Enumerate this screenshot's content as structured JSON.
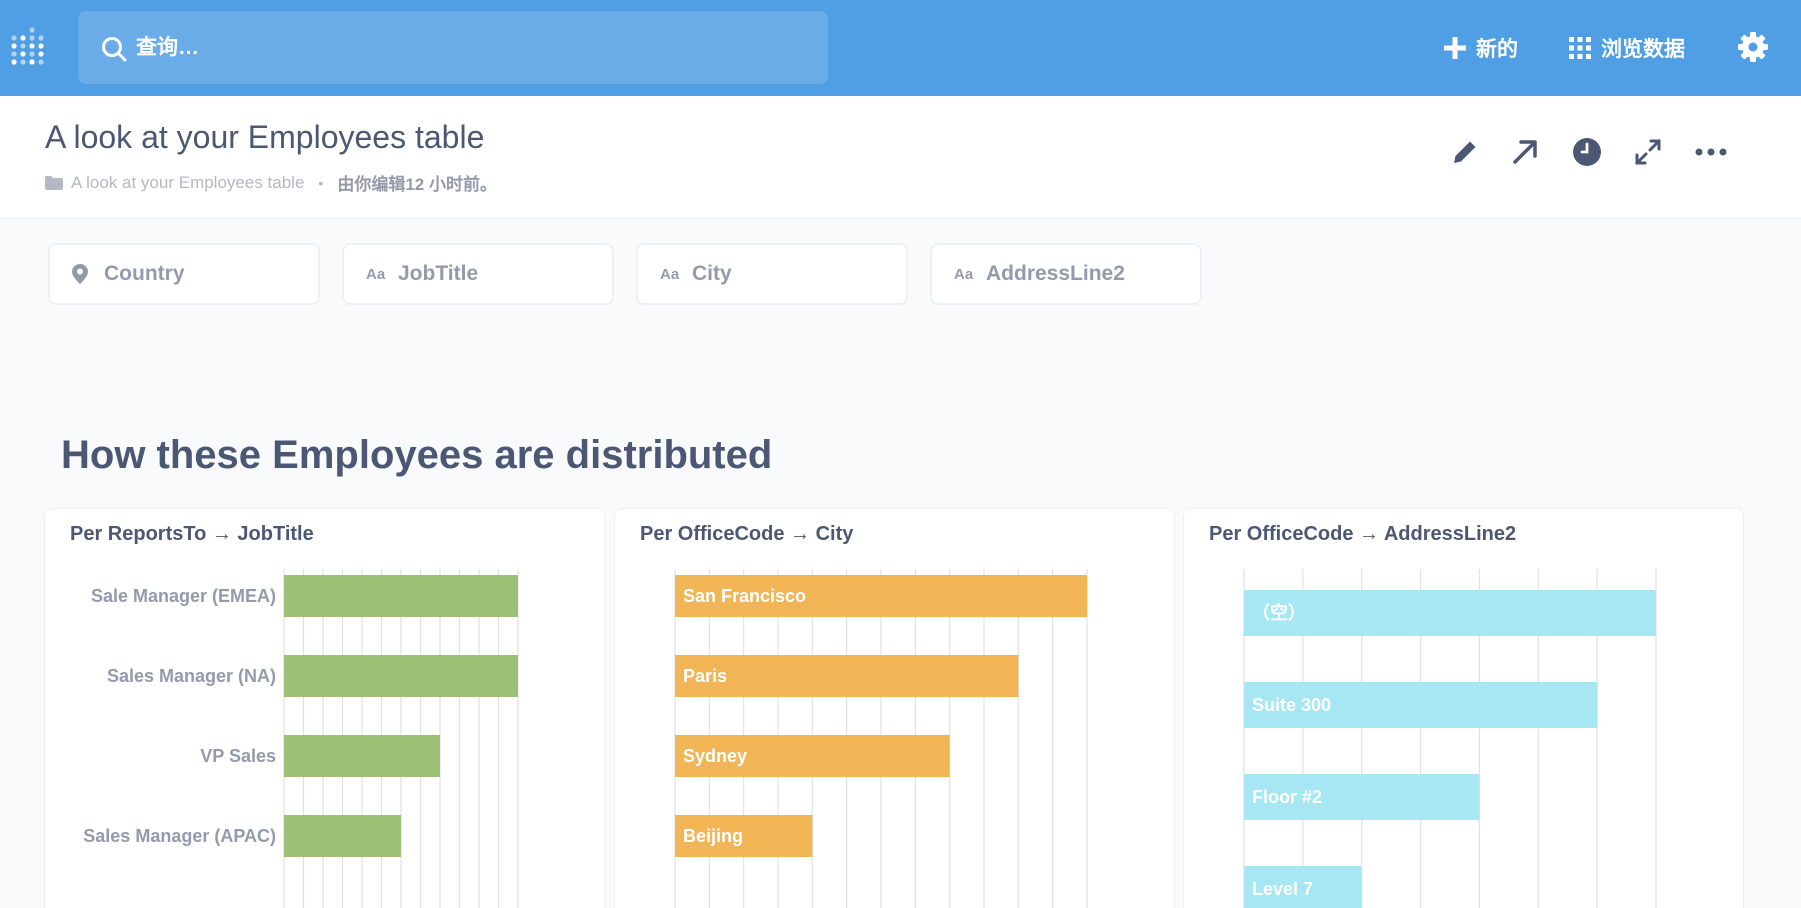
{
  "nav": {
    "search_placeholder": "查询…",
    "new_label": "新的",
    "browse_label": "浏览数据",
    "icons": [
      "metabase-logo-icon",
      "search-icon",
      "plus-icon",
      "grid-icon",
      "gear-icon"
    ]
  },
  "header": {
    "title": "A look at your Employees table",
    "breadcrumb": "A look at your Employees table",
    "separator": "•",
    "edited": "由你编辑12 小时前。",
    "actions": [
      "pencil-icon",
      "arrow-up-right-icon",
      "clock-icon",
      "fullscreen-icon",
      "more-icon"
    ]
  },
  "filters": [
    {
      "label": "Country",
      "icon": "location-pin-icon"
    },
    {
      "label": "JobTitle",
      "icon": "Aa"
    },
    {
      "label": "City",
      "icon": "Aa"
    },
    {
      "label": "AddressLine2",
      "icon": "Aa"
    }
  ],
  "section": {
    "title": "How these Employees are distributed"
  },
  "colors": {
    "brand": "#509ee3",
    "green": "#9cc177",
    "orange": "#f1b556",
    "cyan": "#a6e7f3",
    "text": "#4c5773",
    "muted": "#949aab"
  },
  "chart_data": [
    {
      "type": "bar",
      "orientation": "horizontal",
      "title": "Per ReportsTo → JobTitle",
      "categories": [
        "Sale Manager (EMEA)",
        "Sales Manager (NA)",
        "VP Sales",
        "Sales Manager (APAC)"
      ],
      "values": [
        6,
        6,
        4,
        3
      ],
      "xlim": [
        0,
        6
      ],
      "grid": true,
      "labels_inside": false,
      "color": "#9cc177"
    },
    {
      "type": "bar",
      "orientation": "horizontal",
      "title": "Per OfficeCode → City",
      "categories": [
        "San Francisco",
        "Paris",
        "Sydney",
        "Beijing"
      ],
      "values": [
        6,
        5,
        4,
        2
      ],
      "xlim": [
        0,
        6
      ],
      "grid": true,
      "labels_inside": true,
      "color": "#f1b556"
    },
    {
      "type": "bar",
      "orientation": "horizontal",
      "title": "Per OfficeCode → AddressLine2",
      "categories": [
        "（空）",
        "Suite 300",
        "Floor #2",
        "Level 7"
      ],
      "values": [
        7,
        6,
        4,
        2
      ],
      "xlim": [
        0,
        7
      ],
      "grid": true,
      "labels_inside": true,
      "color": "#a6e7f3"
    }
  ]
}
